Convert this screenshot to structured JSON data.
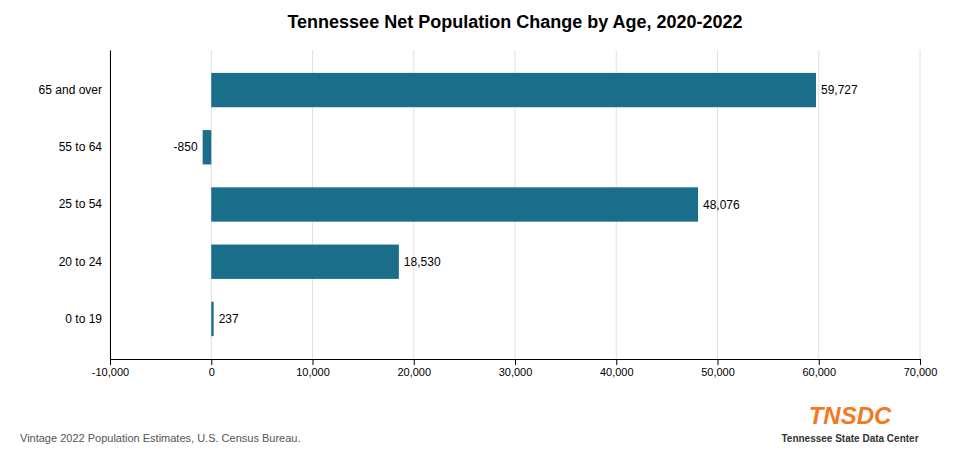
{
  "chart_data": {
    "type": "bar",
    "orientation": "horizontal",
    "title": "Tennessee Net Population Change by Age, 2020-2022",
    "categories": [
      "65 and over",
      "55 to 64",
      "25 to 54",
      "20 to 24",
      "0 to 19"
    ],
    "values": [
      59727,
      -850,
      48076,
      18530,
      237
    ],
    "value_labels": [
      "59,727",
      "-850",
      "48,076",
      "18,530",
      "237"
    ],
    "data_labels": true,
    "color": "#1a6e8a",
    "xlim": [
      -10000,
      70000
    ],
    "xticks": [
      {
        "value": -10000,
        "label": "-10,000"
      },
      0,
      {
        "value": 10000,
        "label": "10,000"
      },
      {
        "value": 20000,
        "label": "20,000"
      },
      {
        "value": 30000,
        "label": "30,000"
      },
      {
        "value": 40000,
        "label": "40,000"
      },
      {
        "value": 50000,
        "label": "50,000"
      },
      {
        "value": 60000,
        "label": "60,000"
      },
      {
        "value": 70000,
        "label": "70,000"
      }
    ],
    "grid": true,
    "annotations": [
      {
        "text": "Vintage 2022 Population Estimates, U.S. Census Bureau.",
        "color": "#555555"
      },
      {
        "text": "TNSDC",
        "color": "#f47920"
      },
      {
        "text": "Tennessee State Data Center",
        "color": "#333333"
      }
    ]
  }
}
